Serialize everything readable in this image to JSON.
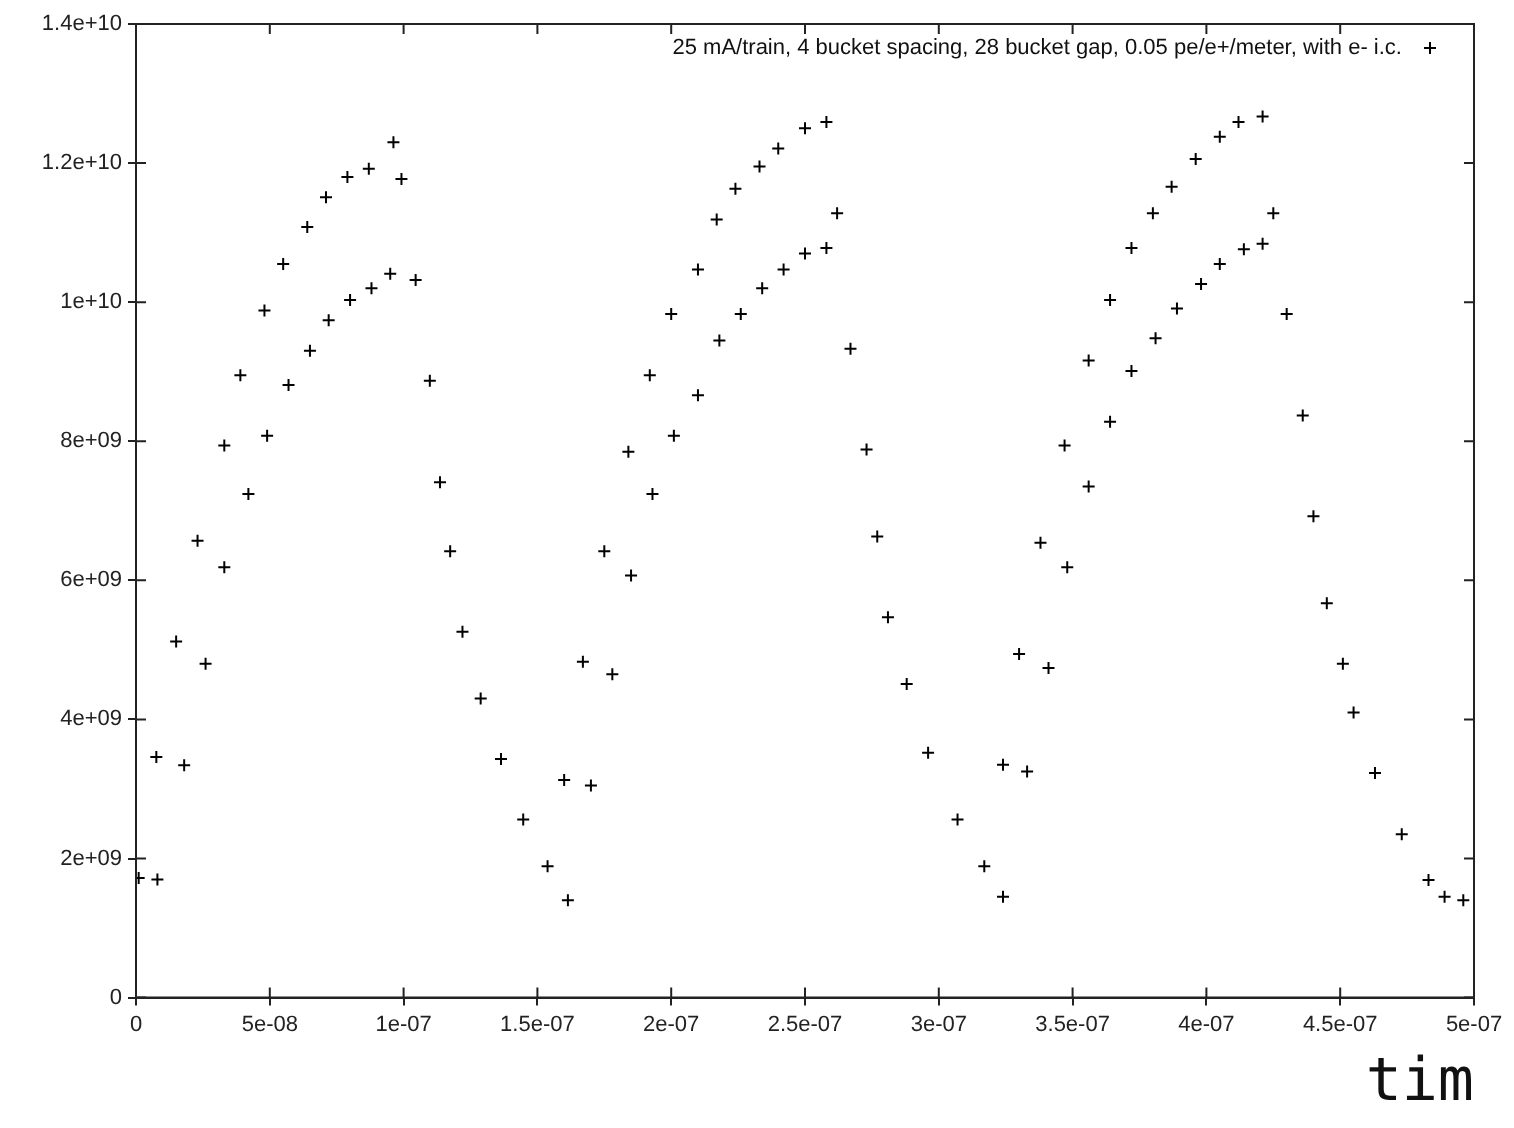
{
  "chart_data": {
    "type": "scatter",
    "xlabel": "tim",
    "marker": "cross",
    "legend": "top right",
    "xlim": [
      0,
      5e-07
    ],
    "ylim": [
      0,
      14000000000
    ],
    "xticks": [
      {
        "value": 0,
        "label": "0"
      },
      {
        "value": 5e-08,
        "label": "5e-08"
      },
      {
        "value": 1e-07,
        "label": "1e-07"
      },
      {
        "value": 1.5e-07,
        "label": "1.5e-07"
      },
      {
        "value": 2e-07,
        "label": "2e-07"
      },
      {
        "value": 2.5e-07,
        "label": "2.5e-07"
      },
      {
        "value": 3e-07,
        "label": "3e-07"
      },
      {
        "value": 3.5e-07,
        "label": "3.5e-07"
      },
      {
        "value": 4e-07,
        "label": "4e-07"
      },
      {
        "value": 4.5e-07,
        "label": "4.5e-07"
      },
      {
        "value": 5e-07,
        "label": "5e-07"
      }
    ],
    "yticks": [
      {
        "value": 0,
        "label": "0"
      },
      {
        "value": 2000000000,
        "label": "2e+09"
      },
      {
        "value": 4000000000,
        "label": "4e+09"
      },
      {
        "value": 6000000000,
        "label": "6e+09"
      },
      {
        "value": 8000000000,
        "label": "8e+09"
      },
      {
        "value": 10000000000,
        "label": "1e+10"
      },
      {
        "value": 12000000000,
        "label": "1.2e+10"
      },
      {
        "value": 14000000000,
        "label": "1.4e+10"
      }
    ],
    "series": [
      {
        "name": "25 mA/train, 4 bucket spacing, 28 bucket gap, 0.05 pe/e+/meter, with e- i.c.",
        "color": "#000000",
        "x": [
          1e-09,
          8e-09,
          7.6e-09,
          1.8e-08,
          1.5e-08,
          2.6e-08,
          2.3e-08,
          3.3e-08,
          3.3e-08,
          4.2e-08,
          3.9e-08,
          4.9e-08,
          4.8e-08,
          5.7e-08,
          5.5e-08,
          6.5e-08,
          6.4e-08,
          7.2e-08,
          7.1e-08,
          8e-08,
          7.9e-08,
          8.8e-08,
          8.7e-08,
          9.5e-08,
          9.62e-08,
          9.92e-08,
          1.045e-07,
          1.098e-07,
          1.136e-07,
          1.174e-07,
          1.22e-07,
          1.288e-07,
          1.364e-07,
          1.447e-07,
          1.538e-07,
          1.614e-07,
          1.6e-07,
          1.7e-07,
          1.67e-07,
          1.78e-07,
          1.75e-07,
          1.85e-07,
          1.84e-07,
          1.93e-07,
          1.92e-07,
          2.01e-07,
          2e-07,
          2.1e-07,
          2.1e-07,
          2.18e-07,
          2.17e-07,
          2.26e-07,
          2.24e-07,
          2.34e-07,
          2.33e-07,
          2.42e-07,
          2.4e-07,
          2.5e-07,
          2.5e-07,
          2.58e-07,
          2.58e-07,
          2.62e-07,
          2.67e-07,
          2.73e-07,
          2.77e-07,
          2.81e-07,
          2.88e-07,
          2.96e-07,
          3.07e-07,
          3.17e-07,
          3.24e-07,
          3.24e-07,
          3.33e-07,
          3.3e-07,
          3.41e-07,
          3.38e-07,
          3.48e-07,
          3.47e-07,
          3.56e-07,
          3.56e-07,
          3.64e-07,
          3.64e-07,
          3.72e-07,
          3.72e-07,
          3.81e-07,
          3.8e-07,
          3.89e-07,
          3.87e-07,
          3.98e-07,
          3.96e-07,
          4.05e-07,
          4.05e-07,
          4.14e-07,
          4.12e-07,
          4.21e-07,
          4.21e-07,
          4.25e-07,
          4.3e-07,
          4.36e-07,
          4.4e-07,
          4.45e-07,
          4.51e-07,
          4.55e-07,
          4.63e-07,
          4.73e-07,
          4.83e-07,
          4.89e-07,
          4.96e-07
        ],
        "values": [
          1720000000.0,
          1700000000.0,
          3460000000.0,
          3340000000.0,
          5120000000.0,
          4800000000.0,
          6570000000.0,
          6190000000.0,
          7940000000.0,
          7240000000.0,
          8950000000.0,
          8080000000.0,
          9880000000.0,
          8810000000.0,
          10550000000.0,
          9300000000.0,
          11080000000.0,
          9740000000.0,
          11510000000.0,
          10030000000.0,
          11800000000.0,
          10200000000.0,
          11920000000.0,
          10410000000.0,
          12300000000.0,
          11770000000.0,
          10320000000.0,
          8870000000.0,
          7410000000.0,
          6420000000.0,
          5260000000.0,
          4300000000.0,
          3430000000.0,
          2560000000.0,
          1890000000.0,
          1400000000.0,
          3130000000.0,
          3050000000.0,
          4830000000.0,
          4650000000.0,
          6420000000.0,
          6070000000.0,
          7850000000.0,
          7240000000.0,
          8950000000.0,
          8080000000.0,
          9830000000.0,
          8660000000.0,
          10470000000.0,
          9450000000.0,
          11190000000.0,
          9830000000.0,
          11630000000.0,
          10200000000.0,
          11950000000.0,
          10470000000.0,
          12210000000.0,
          10700000000.0,
          12500000000.0,
          10780000000.0,
          12590000000.0,
          11280000000.0,
          9330000000.0,
          7880000000.0,
          6630000000.0,
          5470000000.0,
          4510000000.0,
          3520000000.0,
          2560000000.0,
          1890000000.0,
          1450000000.0,
          3350000000.0,
          3250000000.0,
          4940000000.0,
          4740000000.0,
          6540000000.0,
          6190000000.0,
          7940000000.0,
          7350000000.0,
          9160000000.0,
          8280000000.0,
          10030000000.0,
          9010000000.0,
          10780000000.0,
          9480000000.0,
          11280000000.0,
          9910000000.0,
          11660000000.0,
          10260000000.0,
          12060000000.0,
          10550000000.0,
          12380000000.0,
          10760000000.0,
          12590000000.0,
          10840000000.0,
          12670000000.0,
          11280000000.0,
          9830000000.0,
          8370000000.0,
          6920000000.0,
          5670000000.0,
          4800000000.0,
          4100000000.0,
          3230000000.0,
          2350000000.0,
          1690000000.0,
          1450000000.0,
          1400000000.0
        ]
      }
    ]
  }
}
